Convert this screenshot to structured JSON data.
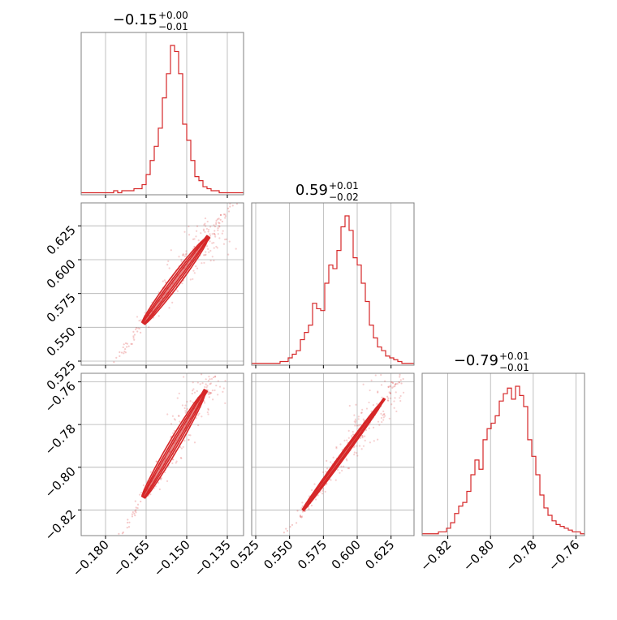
{
  "colors": {
    "series": "#d62728",
    "grid": "#b0b0b0",
    "frame": "#808080",
    "text": "#000000"
  },
  "chart_data": {
    "type": "corner",
    "grid": true,
    "parameters": [
      {
        "key": "p0",
        "range": [
          -0.189,
          -0.129
        ],
        "ticks": [
          -0.18,
          -0.165,
          -0.15,
          -0.135
        ],
        "tick_labels": [
          "−0.180",
          "−0.165",
          "−0.150",
          "−0.135"
        ]
      },
      {
        "key": "p1",
        "range": [
          0.522,
          0.642
        ],
        "ticks": [
          0.525,
          0.55,
          0.575,
          0.6,
          0.625
        ],
        "tick_labels": [
          "0.525",
          "0.550",
          "0.575",
          "0.600",
          "0.625"
        ]
      },
      {
        "key": "p2",
        "range": [
          -0.832,
          -0.756
        ],
        "ticks": [
          -0.82,
          -0.8,
          -0.78,
          -0.76
        ],
        "tick_labels": [
          "−0.82",
          "−0.80",
          "−0.78",
          "−0.76"
        ]
      }
    ],
    "diag_titles": [
      {
        "value": "−0.15",
        "plus": "+0.00",
        "minus": "−0.01"
      },
      {
        "value": "0.59",
        "plus": "+0.01",
        "minus": "−0.02"
      },
      {
        "value": "−0.79",
        "plus": "+0.01",
        "minus": "−0.01"
      }
    ],
    "histograms": [
      {
        "param": "p0",
        "edges_range": [
          -0.189,
          -0.129
        ],
        "counts": [
          1,
          1,
          1,
          1,
          1,
          1,
          1,
          1,
          2,
          1,
          2,
          2,
          2,
          3,
          3,
          5,
          10,
          17,
          24,
          33,
          48,
          60,
          74,
          71,
          60,
          35,
          27,
          17,
          9,
          7,
          4,
          3,
          2,
          2,
          1,
          1,
          1,
          1,
          1,
          1
        ]
      },
      {
        "param": "p1",
        "edges_range": [
          0.522,
          0.642
        ],
        "counts": [
          1,
          1,
          1,
          1,
          1,
          1,
          1,
          2,
          2,
          4,
          6,
          8,
          14,
          18,
          22,
          34,
          31,
          30,
          45,
          55,
          53,
          63,
          76,
          82,
          74,
          59,
          55,
          45,
          35,
          22,
          15,
          10,
          8,
          5,
          4,
          3,
          2,
          1,
          1,
          1
        ]
      },
      {
        "param": "p2",
        "edges_range": [
          -0.832,
          -0.756
        ],
        "counts": [
          1,
          1,
          1,
          1,
          2,
          2,
          4,
          7,
          12,
          16,
          18,
          24,
          33,
          41,
          36,
          52,
          58,
          61,
          65,
          73,
          77,
          80,
          74,
          81,
          76,
          70,
          52,
          43,
          33,
          22,
          15,
          11,
          8,
          6,
          5,
          4,
          3,
          2,
          2,
          1
        ]
      }
    ],
    "pairs": [
      {
        "x": "p0",
        "y": "p1",
        "ridge": [
          [
            -0.166,
            0.553
          ],
          [
            -0.159,
            0.568
          ],
          [
            -0.153,
            0.587
          ],
          [
            -0.146,
            0.605
          ],
          [
            -0.142,
            0.617
          ]
        ],
        "scatter_extent": {
          "x": [
            -0.189,
            -0.134
          ],
          "y": [
            0.522,
            0.635
          ]
        }
      },
      {
        "x": "p0",
        "y": "p2",
        "ridge": [
          [
            -0.166,
            -0.814
          ],
          [
            -0.159,
            -0.8
          ],
          [
            -0.153,
            -0.786
          ],
          [
            -0.147,
            -0.773
          ],
          [
            -0.143,
            -0.764
          ]
        ],
        "scatter_extent": {
          "x": [
            -0.189,
            -0.134
          ],
          "y": [
            -0.832,
            -0.757
          ]
        }
      },
      {
        "x": "p1",
        "y": "p2",
        "ridge": [
          [
            0.56,
            -0.82
          ],
          [
            0.58,
            -0.801
          ],
          [
            0.6,
            -0.786
          ],
          [
            0.62,
            -0.768
          ]
        ],
        "scatter_extent": {
          "x": [
            0.522,
            0.642
          ],
          "y": [
            -0.832,
            -0.756
          ]
        }
      }
    ]
  }
}
